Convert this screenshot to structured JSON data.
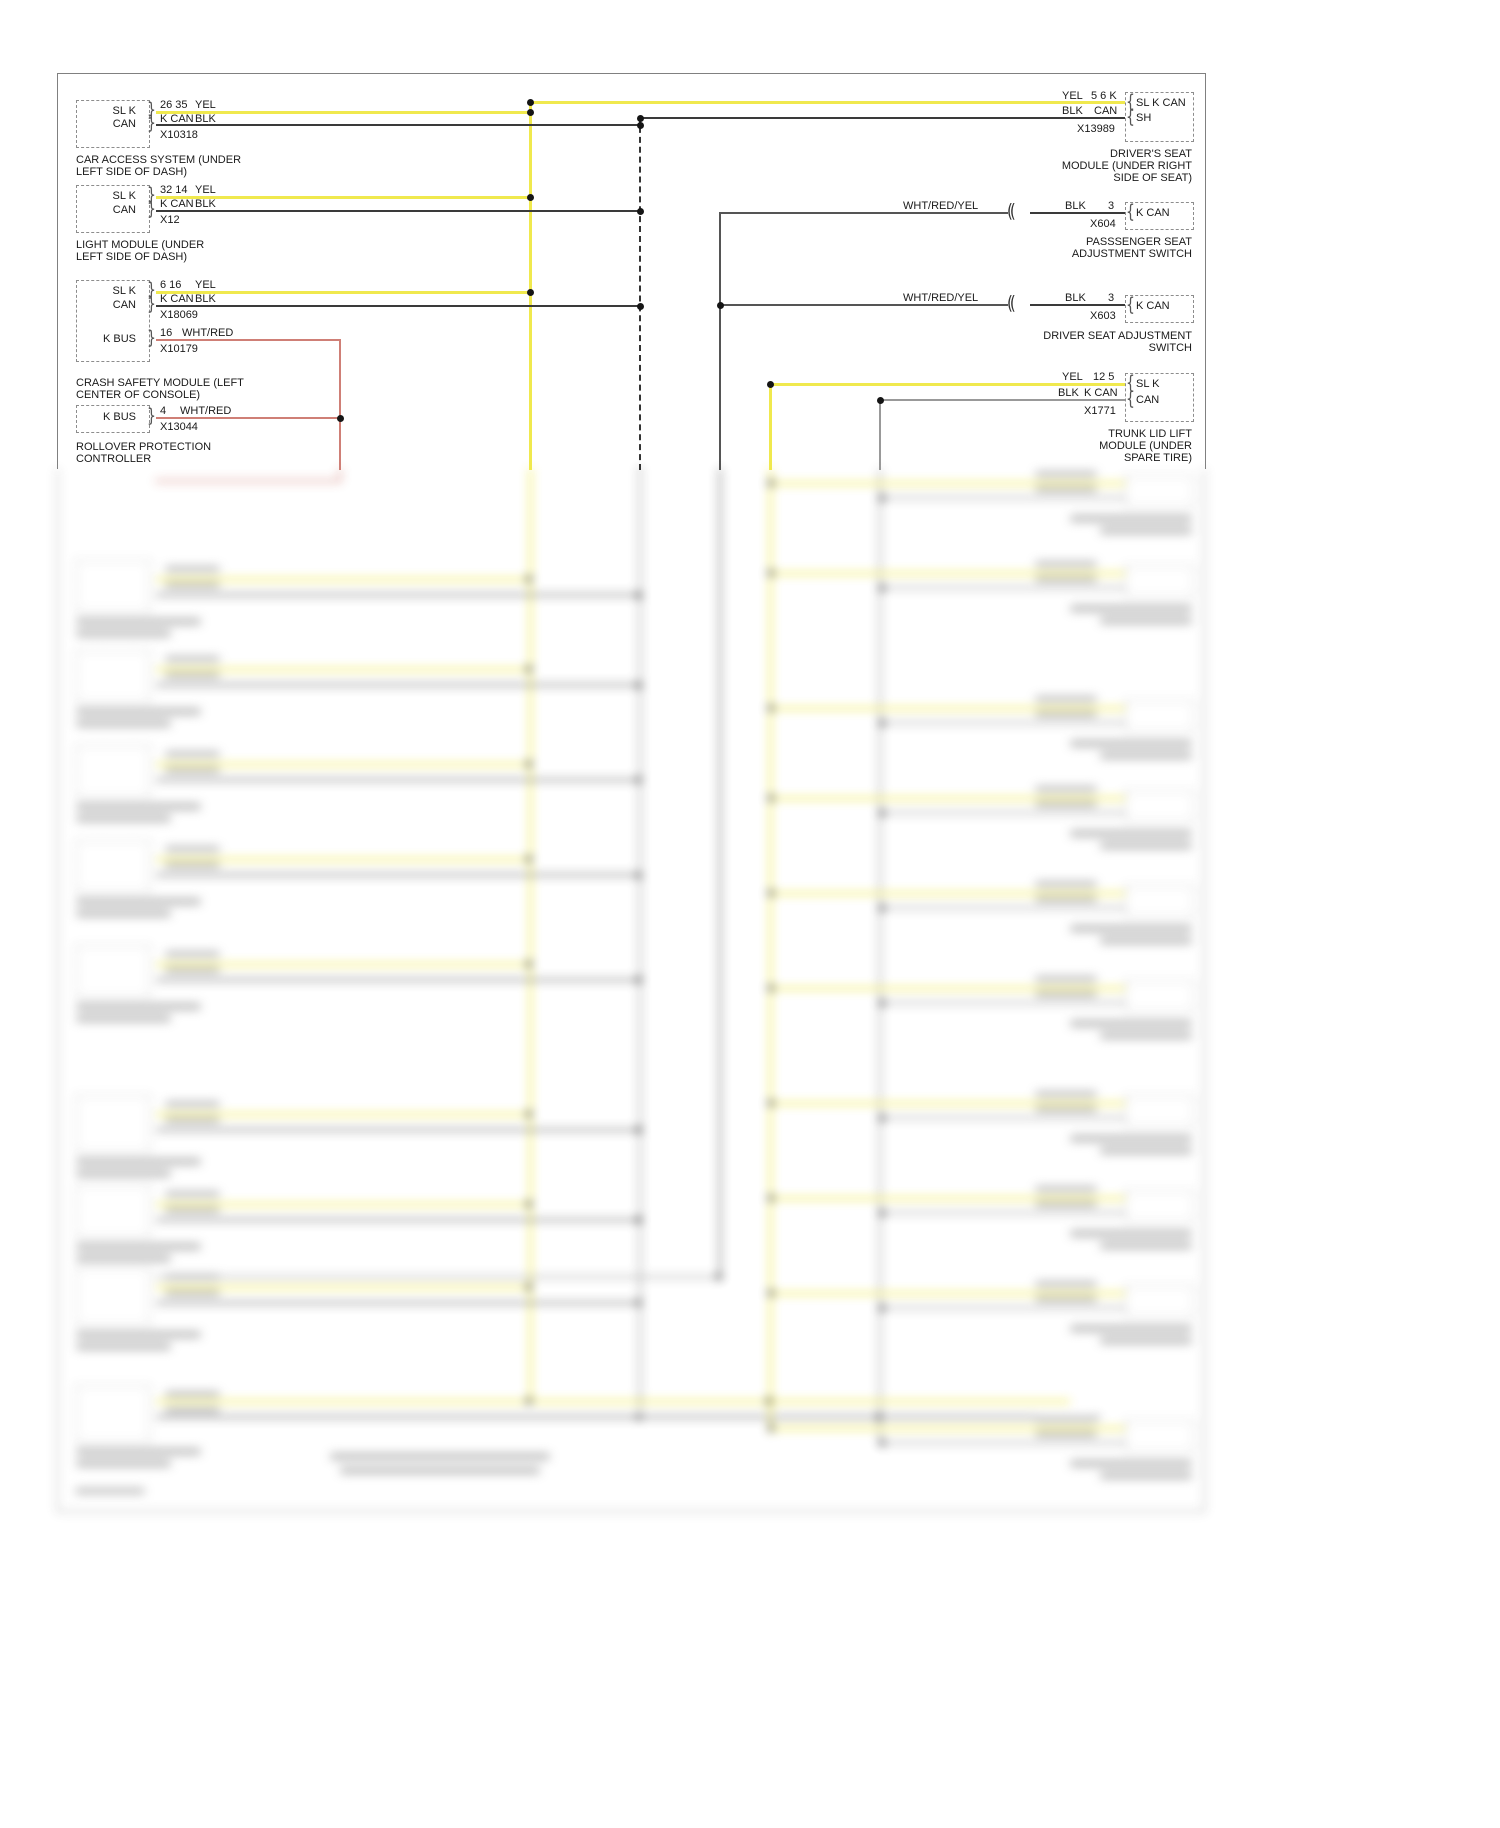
{
  "icons": {
    "brace_right": "}",
    "brace_left": "{",
    "inline_connector": "(("
  },
  "wire_colors": {
    "yellow": "#f0e94e",
    "black": "#3a3a3a",
    "gray": "#999999",
    "dark": "#555555",
    "red": "#cf7f76"
  },
  "left_modules": [
    {
      "labels": [
        "SL K",
        "CAN"
      ],
      "pins": [
        "26 35",
        "K CAN"
      ],
      "wires": [
        "YEL",
        "BLK"
      ],
      "connector": "X10318",
      "caption_lines": [
        "CAR ACCESS SYSTEM (UNDER",
        "LEFT SIDE OF DASH)"
      ]
    },
    {
      "labels": [
        "SL K",
        "CAN"
      ],
      "pins": [
        "32 14",
        "K CAN"
      ],
      "wires": [
        "YEL",
        "BLK"
      ],
      "connector": "X12",
      "caption_lines": [
        "LIGHT MODULE (UNDER",
        "LEFT SIDE OF DASH)"
      ]
    },
    {
      "labels": [
        "SL K",
        "CAN",
        "K BUS"
      ],
      "pins": [
        "6 16",
        "K CAN",
        "16"
      ],
      "wires": [
        "YEL",
        "BLK",
        "WHT/RED"
      ],
      "connectors": [
        "X18069",
        "X10179"
      ],
      "caption_lines": [
        "CRASH SAFETY MODULE (LEFT",
        "CENTER OF CONSOLE)"
      ]
    },
    {
      "labels": [
        "K BUS"
      ],
      "pins": [
        "4"
      ],
      "wires": [
        "WHT/RED"
      ],
      "connector": "X13044",
      "caption_lines": [
        "ROLLOVER PROTECTION",
        "CONTROLLER"
      ]
    }
  ],
  "right_modules": [
    {
      "wire_rows": [
        {
          "wire": "YEL",
          "pin": "5 6 K"
        },
        {
          "wire": "BLK",
          "pin": "CAN"
        }
      ],
      "connector": "X13989",
      "labels": [
        "SL K CAN",
        "SH"
      ],
      "caption_lines": [
        "DRIVER'S SEAT",
        "MODULE (UNDER RIGHT",
        "SIDE OF SEAT)"
      ]
    },
    {
      "wire_label": "WHT/RED/YEL",
      "wire_rows": [
        {
          "wire": "BLK",
          "pin": "3"
        }
      ],
      "connector": "X604",
      "labels": [
        "K CAN"
      ],
      "caption_lines": [
        "PASSSENGER SEAT",
        "ADJUSTMENT SWITCH"
      ]
    },
    {
      "wire_label": "WHT/RED/YEL",
      "wire_rows": [
        {
          "wire": "BLK",
          "pin": "3"
        }
      ],
      "connector": "X603",
      "labels": [
        "K CAN"
      ],
      "caption_lines": [
        "DRIVER SEAT ADJUSTMENT",
        "SWITCH"
      ]
    },
    {
      "wire_rows": [
        {
          "wire": "YEL",
          "pin": "12 5"
        },
        {
          "wire": "BLK",
          "pin": "K CAN"
        }
      ],
      "connector": "X1771",
      "labels": [
        "SL K",
        "CAN"
      ],
      "caption_lines": [
        "TRUNK LID LIFT",
        "MODULE (UNDER",
        "SPARE TIRE)"
      ]
    }
  ]
}
